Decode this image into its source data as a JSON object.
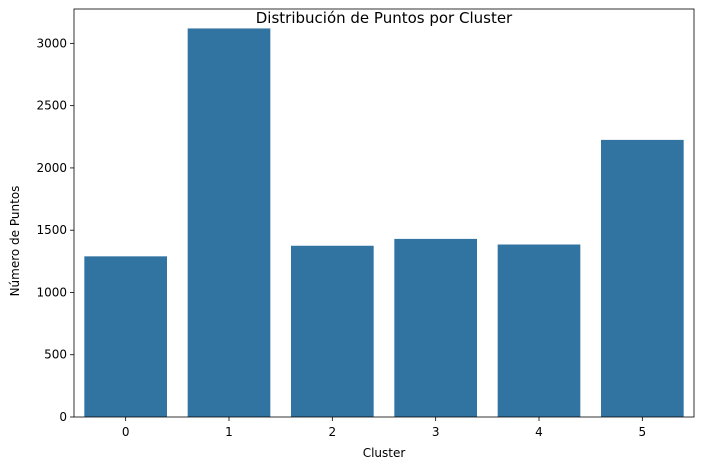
{
  "chart_data": {
    "type": "bar",
    "title": "Distribución de Puntos por Cluster",
    "xlabel": "Cluster",
    "ylabel": "Número de Puntos",
    "categories": [
      "0",
      "1",
      "2",
      "3",
      "4",
      "5"
    ],
    "values": [
      1290,
      3120,
      1375,
      1430,
      1385,
      2225
    ],
    "ylim": [
      0,
      3276
    ],
    "yticks": [
      0,
      500,
      1000,
      1500,
      2000,
      2500,
      3000
    ],
    "grid": false,
    "bar_color": "#3274a1"
  }
}
